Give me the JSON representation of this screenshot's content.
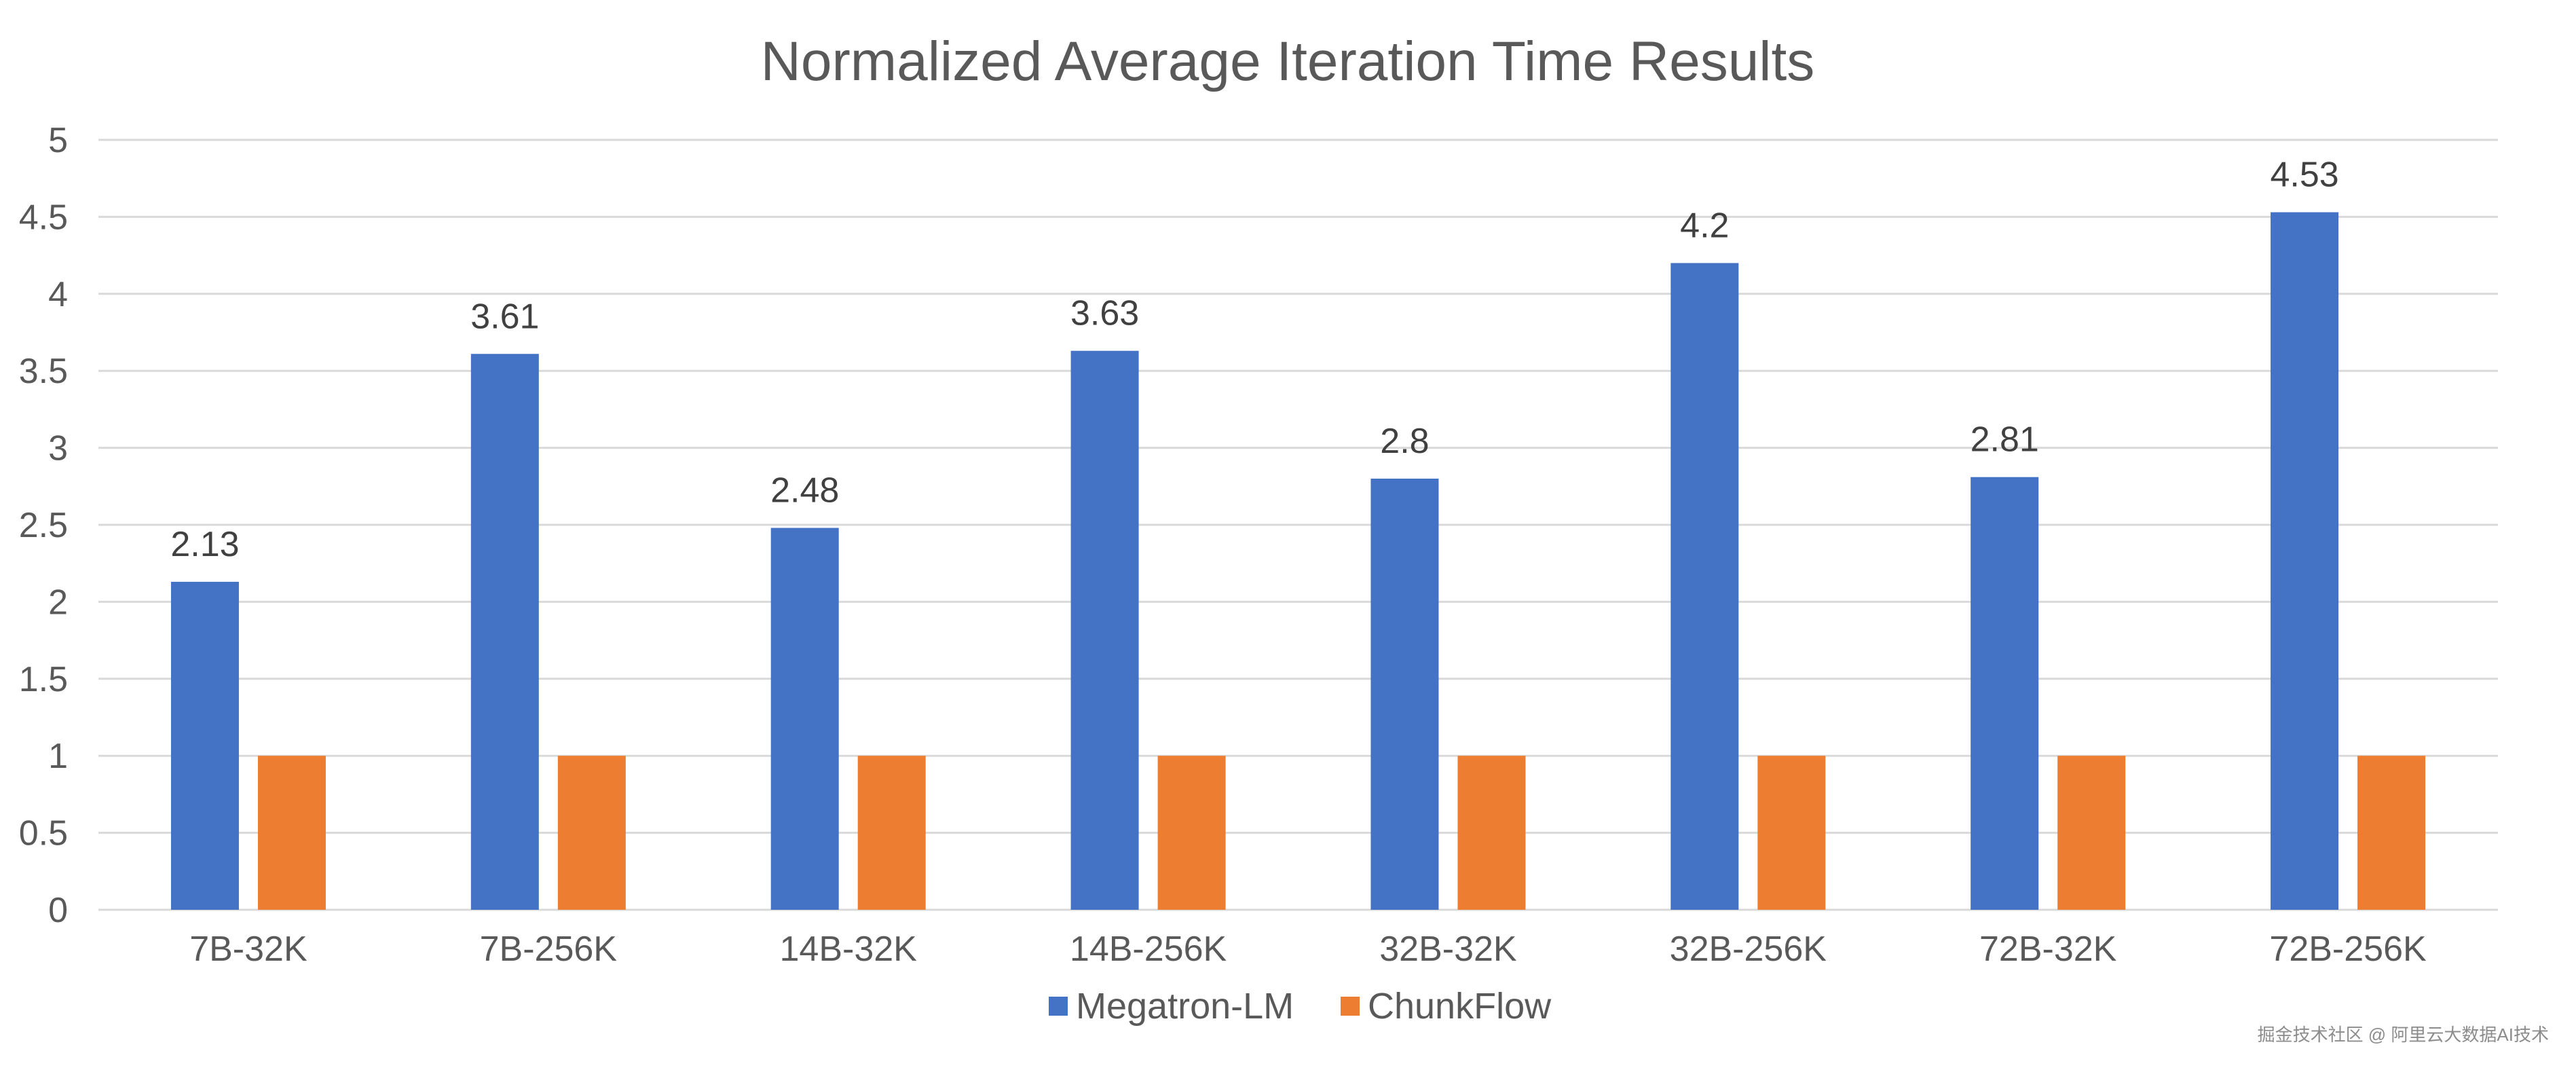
{
  "chart_data": {
    "type": "bar",
    "title": "Normalized Average Iteration Time Results",
    "xlabel": "",
    "ylabel": "",
    "ylim": [
      0,
      5
    ],
    "yticks": [
      "0",
      "0.5",
      "1",
      "1.5",
      "2",
      "2.5",
      "3",
      "3.5",
      "4",
      "4.5",
      "5"
    ],
    "grid": true,
    "legend_position": "bottom",
    "categories": [
      "7B-32K",
      "7B-256K",
      "14B-32K",
      "14B-256K",
      "32B-32K",
      "32B-256K",
      "72B-32K",
      "72B-256K"
    ],
    "series": [
      {
        "name": "Megatron-LM",
        "color": "#4472C4",
        "values": [
          2.13,
          3.61,
          2.48,
          3.63,
          2.8,
          4.2,
          2.81,
          4.53
        ],
        "labels": [
          "2.13",
          "3.61",
          "2.48",
          "3.63",
          "2.8",
          "4.2",
          "2.81",
          "4.53"
        ]
      },
      {
        "name": "ChunkFlow",
        "color": "#ED7D31",
        "values": [
          1,
          1,
          1,
          1,
          1,
          1,
          1,
          1
        ]
      }
    ]
  },
  "watermark": "掘金技术社区 @ 阿里云大数据AI技术"
}
